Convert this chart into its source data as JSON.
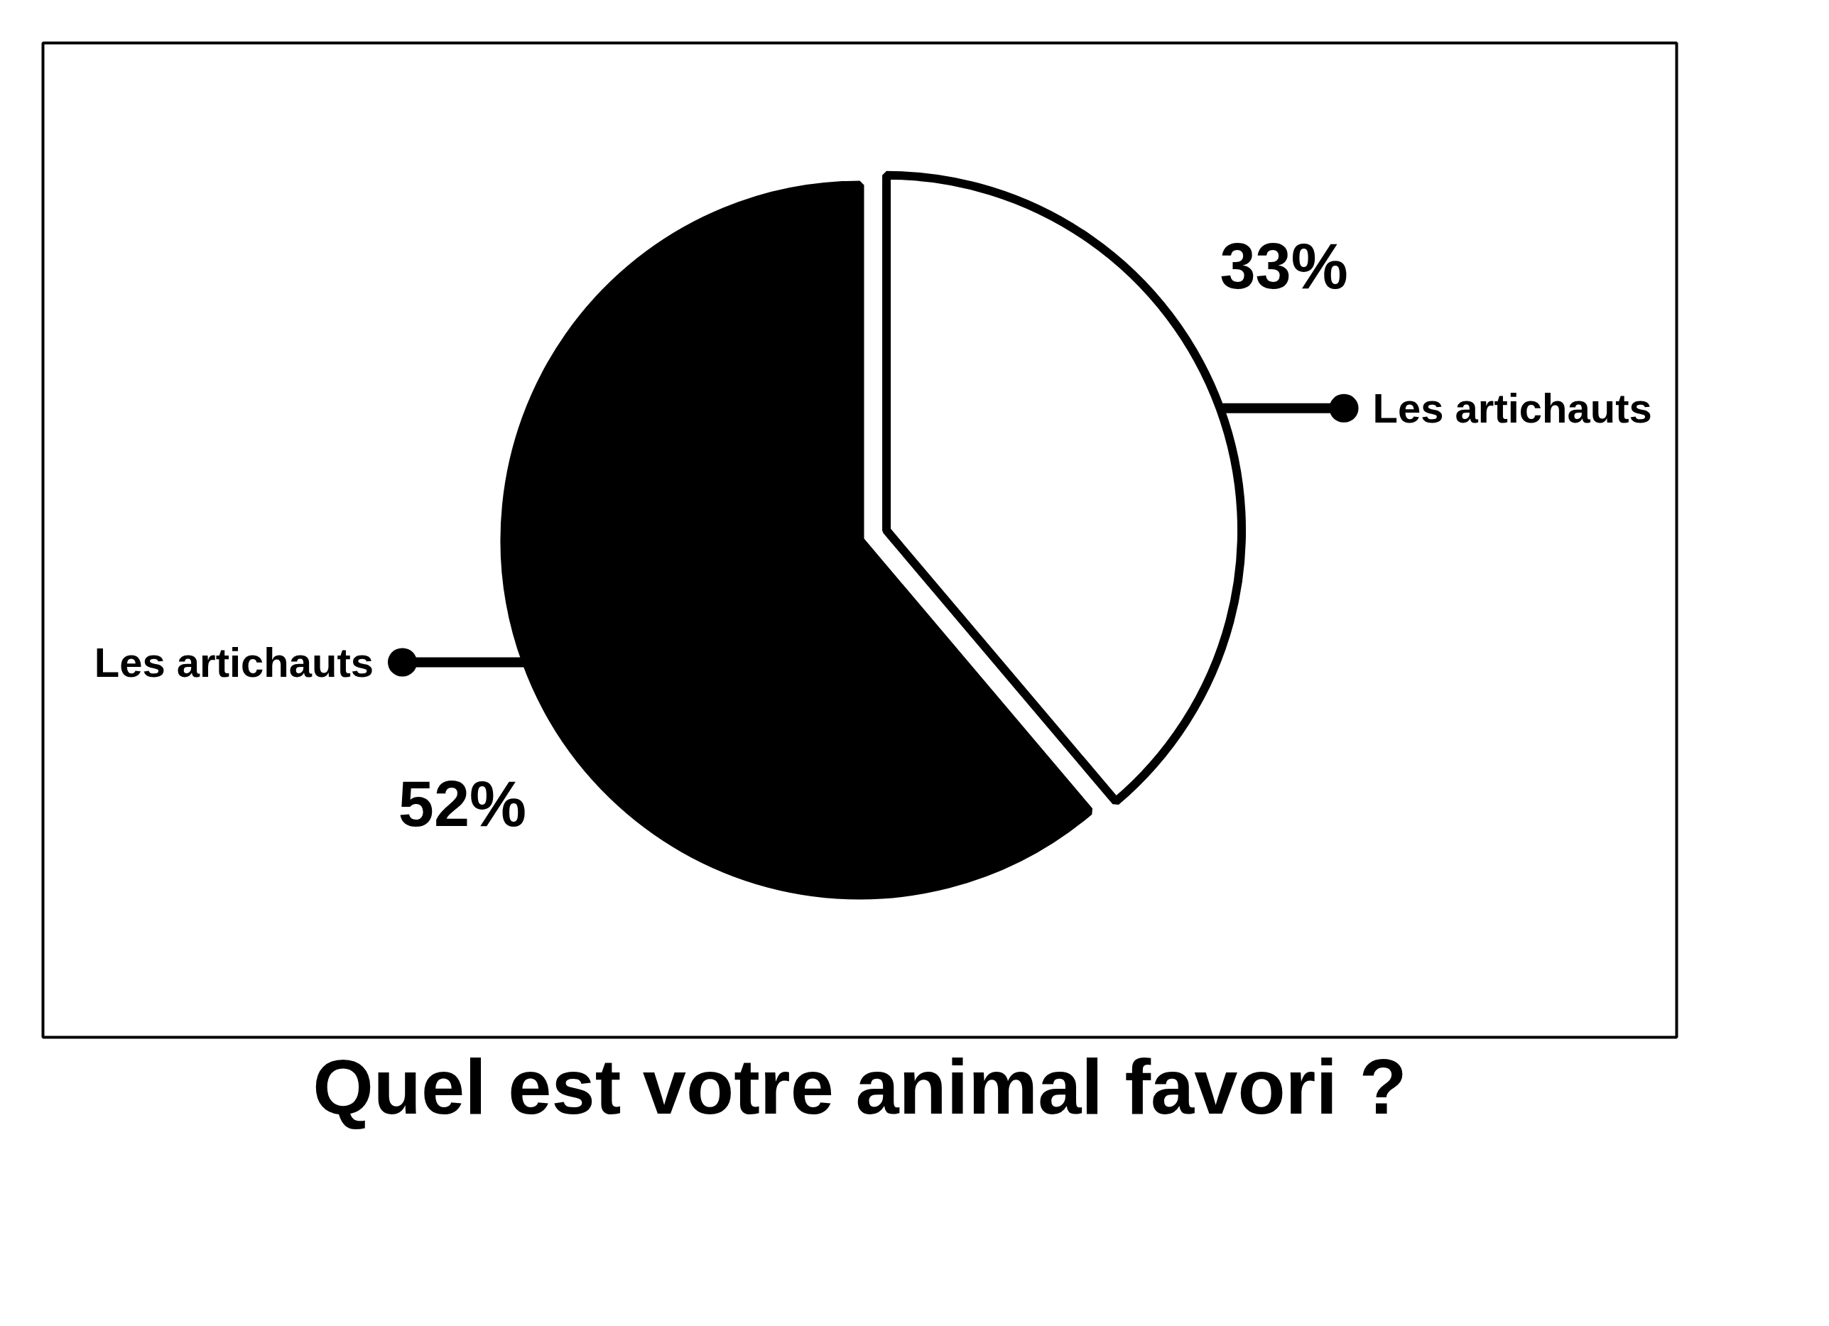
{
  "chart_data": {
    "type": "pie",
    "title": "Quel est votre animal favori ?",
    "categories": [
      "Les artichauts",
      "Les artichauts"
    ],
    "values": [
      33,
      52
    ],
    "colors": [
      "#ffffff",
      "#000000"
    ],
    "value_labels": [
      "33%",
      "52%"
    ]
  }
}
